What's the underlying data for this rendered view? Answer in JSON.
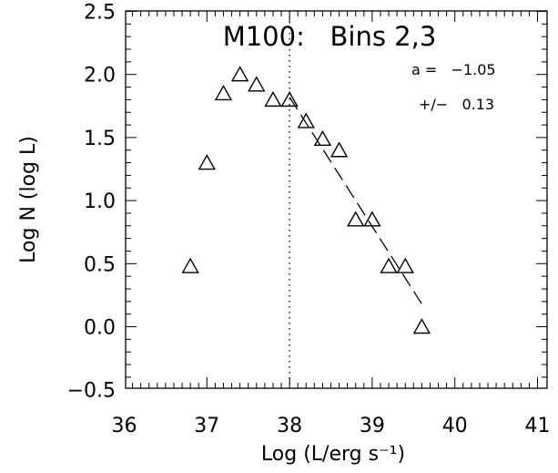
{
  "chart_data": {
    "type": "scatter",
    "title": "M100:   Bins 2,3",
    "xlabel": "Log (L/erg s⁻¹)",
    "ylabel": "Log N (log L)",
    "xlim": [
      36,
      41
    ],
    "ylim": [
      -0.6,
      2.5
    ],
    "x_ticks": [
      "36",
      "37",
      "38",
      "39",
      "40",
      "41"
    ],
    "y_ticks": [
      "−0.5",
      "0.0",
      "0.5",
      "1.0",
      "1.5",
      "2.0",
      "2.5"
    ],
    "grid": false,
    "marker": "open-triangle",
    "annotation_line1": "a =   −1.05",
    "annotation_line2": "+/−   0.13",
    "vertical_line": {
      "x": 38.0,
      "style": "dotted"
    },
    "fit_line": {
      "style": "dashed",
      "x": [
        38.0,
        39.6
      ],
      "y": [
        1.82,
        0.18
      ]
    },
    "points": [
      {
        "x": 36.8,
        "y": 0.48
      },
      {
        "x": 37.0,
        "y": 1.3
      },
      {
        "x": 37.2,
        "y": 1.85
      },
      {
        "x": 37.4,
        "y": 2.0
      },
      {
        "x": 37.6,
        "y": 1.92
      },
      {
        "x": 37.8,
        "y": 1.8
      },
      {
        "x": 38.0,
        "y": 1.8
      },
      {
        "x": 38.2,
        "y": 1.63
      },
      {
        "x": 38.4,
        "y": 1.49
      },
      {
        "x": 38.6,
        "y": 1.4
      },
      {
        "x": 38.8,
        "y": 0.85
      },
      {
        "x": 39.0,
        "y": 0.85
      },
      {
        "x": 39.2,
        "y": 0.48
      },
      {
        "x": 39.4,
        "y": 0.48
      },
      {
        "x": 39.6,
        "y": 0.0
      }
    ]
  }
}
